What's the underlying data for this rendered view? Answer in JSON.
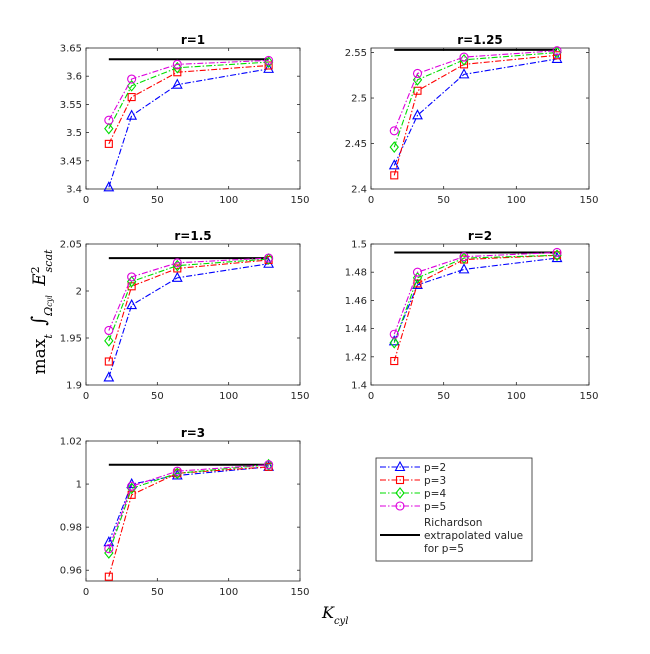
{
  "chart_data": {
    "type": "line",
    "xlabel": "K_cyl",
    "ylabel": "max_t ∫_Ω_cyl E²_scat",
    "xlim": [
      0,
      150
    ],
    "xticks": [
      0,
      50,
      100,
      150
    ],
    "x": [
      16,
      32,
      64,
      128
    ],
    "legend": {
      "placement": "bottom-right",
      "entries": [
        {
          "name": "p=2",
          "color": "#0000ff",
          "marker": "triangle",
          "dash": "dashdot"
        },
        {
          "name": "p=3",
          "color": "#ff0000",
          "marker": "square",
          "dash": "dashdot"
        },
        {
          "name": "p=4",
          "color": "#00dd00",
          "marker": "diamond",
          "dash": "dashdot"
        },
        {
          "name": "p=5",
          "color": "#dd00dd",
          "marker": "circle",
          "dash": "dashdot"
        }
      ],
      "richardson_lines": [
        "Richardson",
        "extrapolated value",
        "for p=5"
      ]
    },
    "panels": [
      {
        "title": "r=1",
        "ylim": [
          3.4,
          3.65
        ],
        "yticks": [
          3.4,
          3.45,
          3.5,
          3.55,
          3.6,
          3.65
        ],
        "ytick_labels": [
          "3.4",
          "3.45",
          "3.5",
          "3.55",
          "3.6",
          "3.65"
        ],
        "richardson": 3.63,
        "series": [
          {
            "name": "p=2",
            "values": [
              3.403,
              3.53,
              3.585,
              3.613
            ]
          },
          {
            "name": "p=3",
            "values": [
              3.48,
              3.563,
              3.607,
              3.619
            ]
          },
          {
            "name": "p=4",
            "values": [
              3.507,
              3.583,
              3.615,
              3.625
            ]
          },
          {
            "name": "p=5",
            "values": [
              3.522,
              3.595,
              3.621,
              3.628
            ]
          }
        ]
      },
      {
        "title": "r=1.25",
        "ylim": [
          2.4,
          2.555
        ],
        "yticks": [
          2.4,
          2.45,
          2.5,
          2.55
        ],
        "ytick_labels": [
          "2.4",
          "2.45",
          "2.5",
          "2.55"
        ],
        "richardson": 2.553,
        "series": [
          {
            "name": "p=2",
            "values": [
              2.426,
              2.481,
              2.526,
              2.543
            ]
          },
          {
            "name": "p=3",
            "values": [
              2.415,
              2.508,
              2.537,
              2.547
            ]
          },
          {
            "name": "p=4",
            "values": [
              2.446,
              2.52,
              2.542,
              2.55
            ]
          },
          {
            "name": "p=5",
            "values": [
              2.464,
              2.527,
              2.545,
              2.552
            ]
          }
        ]
      },
      {
        "title": "r=1.5",
        "ylim": [
          1.9,
          2.05
        ],
        "yticks": [
          1.9,
          1.95,
          2,
          2.05
        ],
        "ytick_labels": [
          "1.9",
          "1.95",
          "2",
          "2.05"
        ],
        "richardson": 2.035,
        "series": [
          {
            "name": "p=2",
            "values": [
              1.908,
              1.985,
              2.014,
              2.029
            ]
          },
          {
            "name": "p=3",
            "values": [
              1.925,
              2.005,
              2.024,
              2.033
            ]
          },
          {
            "name": "p=4",
            "values": [
              1.947,
              2.01,
              2.027,
              2.034
            ]
          },
          {
            "name": "p=5",
            "values": [
              1.958,
              2.015,
              2.03,
              2.035
            ]
          }
        ]
      },
      {
        "title": "r=2",
        "ylim": [
          1.4,
          1.5
        ],
        "yticks": [
          1.4,
          1.42,
          1.44,
          1.46,
          1.48,
          1.5
        ],
        "ytick_labels": [
          "1.4",
          "1.42",
          "1.44",
          "1.46",
          "1.48",
          "1.5"
        ],
        "richardson": 1.494,
        "series": [
          {
            "name": "p=2",
            "values": [
              1.431,
              1.471,
              1.482,
              1.49
            ]
          },
          {
            "name": "p=3",
            "values": [
              1.417,
              1.472,
              1.489,
              1.492
            ]
          },
          {
            "name": "p=4",
            "values": [
              1.43,
              1.476,
              1.49,
              1.492
            ]
          },
          {
            "name": "p=5",
            "values": [
              1.436,
              1.48,
              1.491,
              1.494
            ]
          }
        ]
      },
      {
        "title": "r=3",
        "ylim": [
          0.955,
          1.02
        ],
        "yticks": [
          0.96,
          0.98,
          1,
          1.02
        ],
        "ytick_labels": [
          "0.96",
          "0.98",
          "1",
          "1.02"
        ],
        "richardson": 1.009,
        "series": [
          {
            "name": "p=2",
            "values": [
              0.973,
              1.0,
              1.004,
              1.008
            ]
          },
          {
            "name": "p=3",
            "values": [
              0.957,
              0.995,
              1.005,
              1.008
            ]
          },
          {
            "name": "p=4",
            "values": [
              0.968,
              0.998,
              1.005,
              1.009
            ]
          },
          {
            "name": "p=5",
            "values": [
              0.97,
              0.999,
              1.006,
              1.009
            ]
          }
        ]
      }
    ]
  }
}
